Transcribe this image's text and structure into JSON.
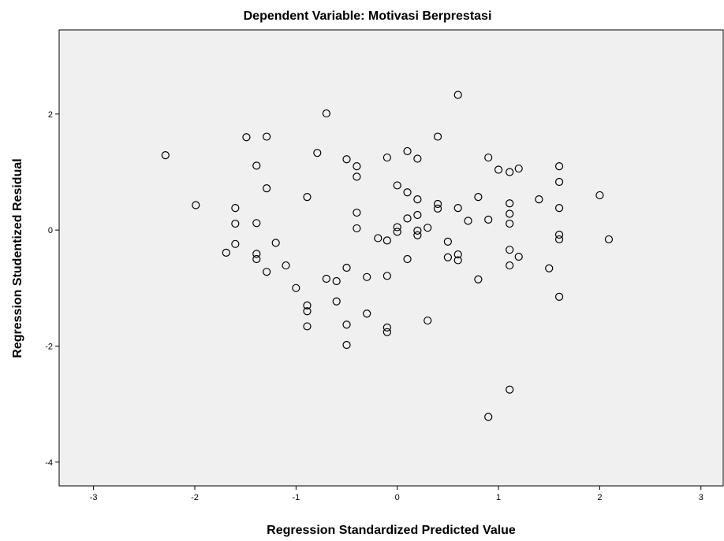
{
  "chart_data": {
    "type": "scatter",
    "title": "Dependent Variable: Motivasi Berprestasi",
    "x_label": "Regression Standardized Predicted Value",
    "y_label": "Regression Studentized Residual",
    "xlim": [
      -3.34,
      3.22
    ],
    "ylim": [
      -4.41,
      3.45
    ],
    "xticks": [
      -3,
      -2,
      -1,
      0,
      1,
      2,
      3
    ],
    "yticks": [
      -4,
      -2,
      0,
      2
    ],
    "color": "#000000",
    "x": [
      -2.29,
      -1.99,
      -1.49,
      -1.29,
      -1.39,
      -1.29,
      -1.6,
      -1.6,
      -1.39,
      -1.6,
      -1.69,
      -1.39,
      -1.39,
      -1.2,
      -1.29,
      -1.1,
      -1.0,
      -0.89,
      -0.89,
      -0.89,
      -0.89,
      -0.79,
      -0.7,
      -0.7,
      -0.6,
      -0.6,
      -0.5,
      -0.5,
      -0.5,
      -0.5,
      -0.4,
      -0.4,
      -0.4,
      -0.4,
      -0.3,
      -0.3,
      -0.19,
      -0.1,
      -0.1,
      -0.1,
      -0.1,
      -0.1,
      0,
      0,
      0,
      0.1,
      0.1,
      0.1,
      0.1,
      0.2,
      0.2,
      0.2,
      0.2,
      0.2,
      0.3,
      0.3,
      0.4,
      0.4,
      0.4,
      0.5,
      0.5,
      0.6,
      0.6,
      0.6,
      0.6,
      0.7,
      0.8,
      0.8,
      0.9,
      0.9,
      0.9,
      1.0,
      1.11,
      1.11,
      1.11,
      1.11,
      1.11,
      1.11,
      1.11,
      1.2,
      1.2,
      1.4,
      1.5,
      1.6,
      1.6,
      1.6,
      1.6,
      1.6,
      1.6,
      2.0,
      2.09
    ],
    "values": [
      1.29,
      0.43,
      1.6,
      1.61,
      1.11,
      0.72,
      0.38,
      0.11,
      0.12,
      -0.24,
      -0.39,
      -0.41,
      -0.5,
      -0.22,
      -0.72,
      -0.61,
      -1.0,
      0.57,
      -1.3,
      -1.4,
      -1.66,
      1.33,
      2.01,
      -0.84,
      -0.88,
      -1.23,
      1.22,
      -0.65,
      -1.63,
      -1.98,
      1.1,
      0.92,
      0.3,
      0.03,
      -0.81,
      -1.44,
      -0.14,
      1.25,
      -0.18,
      -0.79,
      -1.68,
      -1.76,
      0.77,
      0.05,
      -0.03,
      1.36,
      0.65,
      0.2,
      -0.5,
      1.23,
      0.53,
      0.26,
      -0.01,
      -0.09,
      0.04,
      -1.56,
      1.61,
      0.45,
      0.37,
      -0.2,
      -0.47,
      2.33,
      0.38,
      -0.42,
      -0.52,
      0.16,
      0.57,
      -0.85,
      1.25,
      0.18,
      -3.22,
      1.04,
      1.0,
      0.46,
      0.28,
      0.11,
      -0.34,
      -0.61,
      -2.75,
      1.06,
      -0.46,
      0.53,
      -0.66,
      1.1,
      0.83,
      0.38,
      -0.08,
      -0.16,
      -1.15,
      0.6,
      -0.16
    ]
  }
}
